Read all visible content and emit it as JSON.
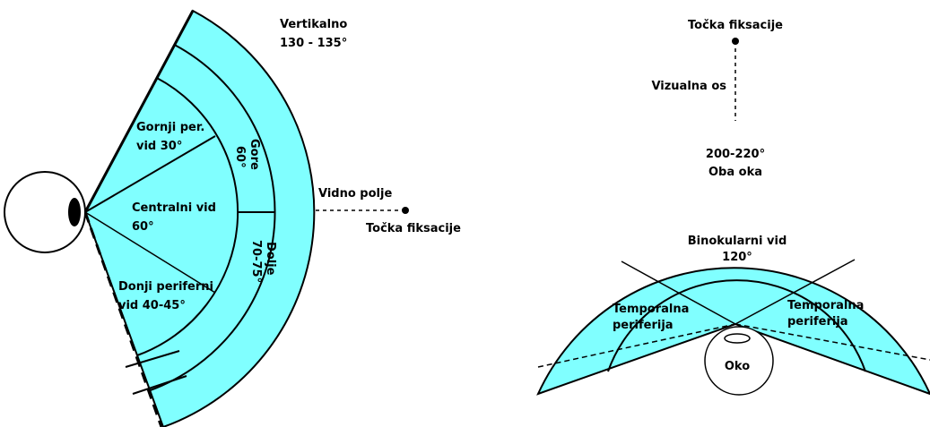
{
  "left": {
    "vertical": [
      "Vertikalno",
      "130 - 135°"
    ],
    "upper": [
      "Gornji per.",
      "vid 30°"
    ],
    "central": [
      "Centralni vid",
      "60°"
    ],
    "lower": [
      "Donji periferni",
      "vid 40-45°"
    ],
    "up": [
      "Gore",
      "60°"
    ],
    "down": [
      "Dolje",
      "70-75°"
    ],
    "field": "Vidno polje",
    "fixation": "Točka fiksacije"
  },
  "right": {
    "fixation": "Točka fiksacije",
    "axis": "Vizualna os",
    "both": [
      "200-220°",
      "Oba oka"
    ],
    "binocular": [
      "Binokularni vid",
      "120°"
    ],
    "temporal_left": [
      "Temporalna",
      "periferija"
    ],
    "temporal_right": [
      "Temporalna",
      "periferija"
    ],
    "eye": "Oko"
  }
}
